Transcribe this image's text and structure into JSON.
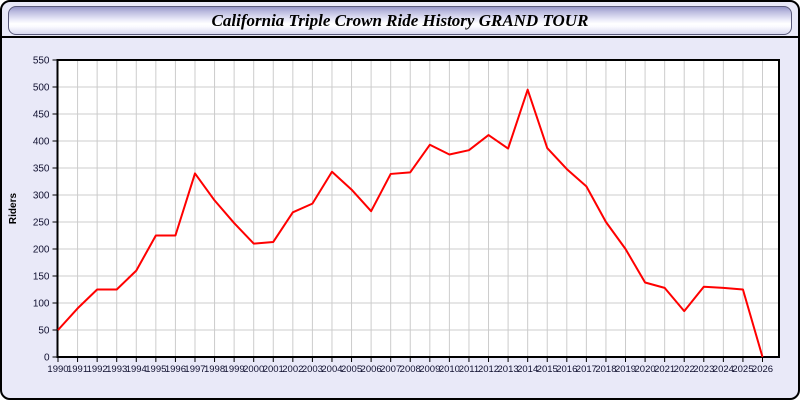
{
  "window": {
    "title": "California Triple Crown Ride History GRAND TOUR"
  },
  "colors": {
    "line": "#ff0000",
    "grid": "#cccccc",
    "plot_background": "#ffffff",
    "page_background": "#e9e9f8",
    "frame_border": "#000000",
    "tick_text": "#101030",
    "titlebar_tint": "#b9b9de"
  },
  "chart_data": {
    "type": "line",
    "title": "California Triple Crown Ride History GRAND TOUR",
    "xlabel": "",
    "ylabel": "Riders",
    "ylim": [
      0,
      550
    ],
    "y_tick_step": 50,
    "grid": true,
    "legend_position": "none",
    "line_color": "#ff0000",
    "categories": [
      "1990",
      "1991",
      "1992",
      "1993",
      "1994",
      "1995",
      "1996",
      "1997",
      "1998",
      "1999",
      "2000",
      "2001",
      "2002",
      "2003",
      "2004",
      "2005",
      "2006",
      "2007",
      "2008",
      "2009",
      "2010",
      "2011",
      "2012",
      "2013",
      "2014",
      "2015",
      "2016",
      "2017",
      "2018",
      "2019",
      "2020",
      "2021",
      "2022",
      "2023",
      "2024",
      "2025",
      "2026"
    ],
    "values": [
      50,
      90,
      125,
      125,
      160,
      225,
      225,
      340,
      290,
      248,
      210,
      213,
      268,
      284,
      343,
      310,
      270,
      339,
      342,
      393,
      375,
      383,
      411,
      386,
      495,
      387,
      348,
      316,
      250,
      200,
      138,
      128,
      85,
      130,
      128,
      125,
      0
    ]
  }
}
